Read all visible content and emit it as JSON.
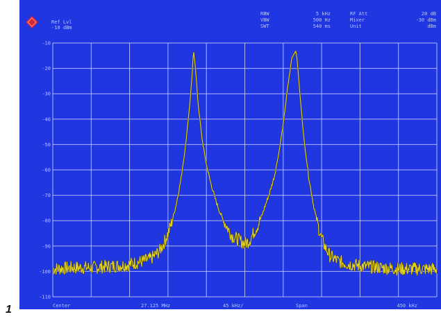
{
  "figure_number": "1",
  "header": {
    "ref_level_label": "Ref Lvl",
    "ref_level_value": "-10 dBm",
    "rbw_label": "RBW",
    "rbw_value": "5 kHz",
    "vbw_label": "VBW",
    "vbw_value": "500 Hz",
    "swt_label": "SWT",
    "swt_value": "540 ms",
    "rf_att_label": "RF Att",
    "rf_att_value": "20 dB",
    "mixer_label": "Mixer",
    "mixer_value": "-30 dBm",
    "unit_label": "Unit",
    "unit_value": "dBm"
  },
  "footer": {
    "center_label": "Center",
    "center_value": "27.125 MHz",
    "div_value": "45 kHz/",
    "span_label": "Span",
    "span_value": "450 kHz"
  },
  "colors": {
    "screen_bg": "#1f36e0",
    "grid": "#c9d0ff",
    "trace": "#e6d21a",
    "text": "#b9c4ff",
    "logo": "#d5283a"
  },
  "chart_data": {
    "type": "line",
    "title": "",
    "xlabel": "",
    "ylabel": "",
    "y_tick_labels": [
      "-10",
      "-20",
      "-30",
      "-40",
      "-50",
      "-60",
      "-70",
      "-80",
      "-90",
      "-100",
      "-110"
    ],
    "ylim": [
      -110,
      -10
    ],
    "xlim_khz_offset": [
      -225,
      225
    ],
    "grid": true,
    "series": [
      {
        "x_khz_offset": [
          -225,
          -200,
          -180,
          -160,
          -140,
          -120,
          -110,
          -100,
          -95,
          -90,
          -85,
          -80,
          -75,
          -70,
          -65,
          -62,
          -60,
          -58,
          -55,
          -50,
          -45,
          -40,
          -35,
          -30,
          -25,
          -20,
          -15,
          -10,
          -5,
          0,
          5,
          10,
          15,
          20,
          25,
          30,
          35,
          40,
          45,
          50,
          55,
          58,
          60,
          62,
          65,
          70,
          75,
          80,
          85,
          90,
          95,
          100,
          110,
          120,
          140,
          160,
          180,
          200,
          225
        ],
        "values": [
          -99,
          -98.5,
          -98.5,
          -98,
          -97.5,
          -96,
          -95,
          -92,
          -89,
          -85,
          -80,
          -73,
          -64,
          -52,
          -36,
          -24,
          -13,
          -19,
          -33,
          -48,
          -58,
          -65,
          -71,
          -76,
          -80,
          -83,
          -86,
          -87,
          -88,
          -89,
          -88,
          -85,
          -82,
          -78,
          -73,
          -68,
          -62,
          -53,
          -42,
          -28,
          -16,
          -14,
          -13,
          -19,
          -32,
          -50,
          -63,
          -73,
          -81,
          -87,
          -91,
          -94,
          -96,
          -97,
          -98,
          -98.5,
          -99,
          -99,
          -99
        ]
      }
    ]
  }
}
